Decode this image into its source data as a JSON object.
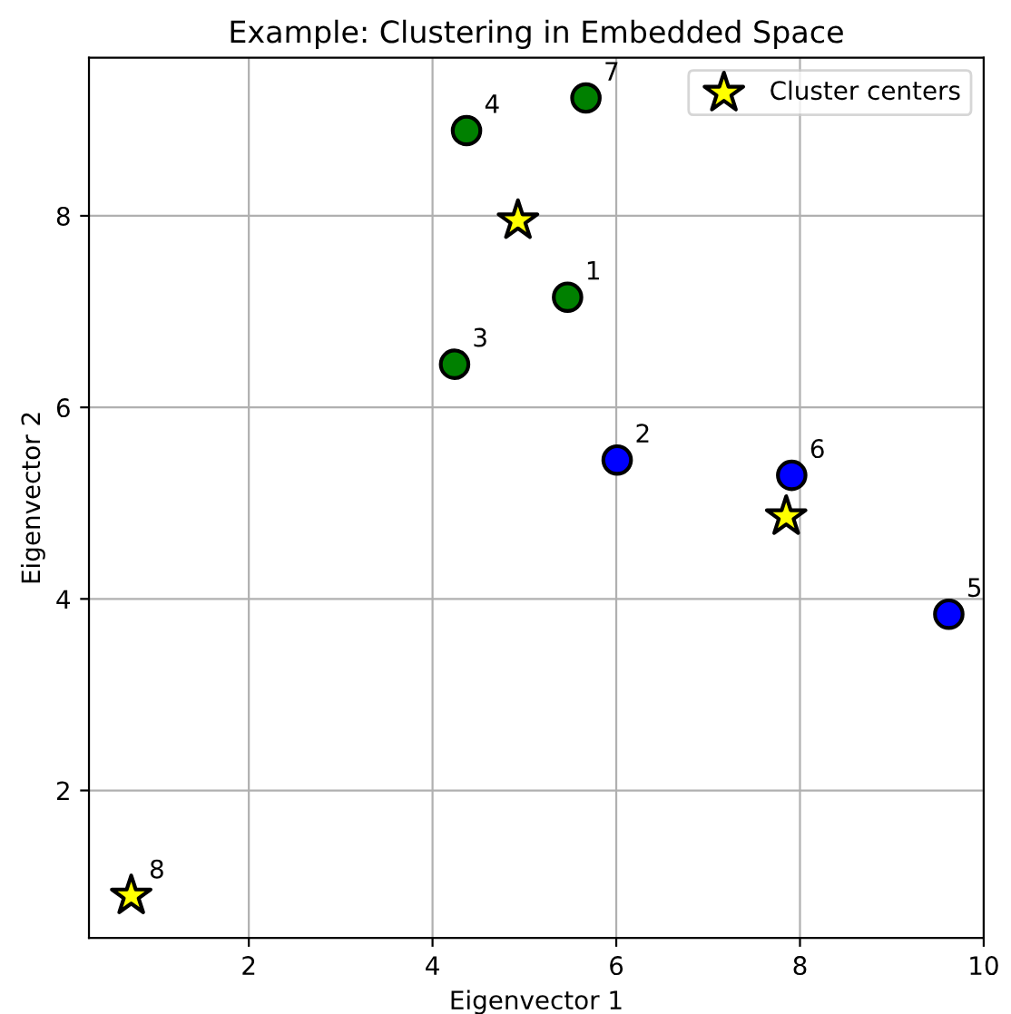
{
  "chart_data": {
    "type": "scatter",
    "title": "Example: Clustering in Embedded Space",
    "xlabel": "Eigenvector 1",
    "ylabel": "Eigenvector 2",
    "xlim": [
      0.26,
      10.0
    ],
    "ylim": [
      0.46,
      9.65
    ],
    "xticks": [
      2,
      4,
      6,
      8,
      10
    ],
    "yticks": [
      2,
      4,
      6,
      8
    ],
    "grid": true,
    "legend": "top right",
    "series": [
      {
        "color": "#008000",
        "marker": "circle",
        "x": [
          5.47,
          4.24,
          4.37,
          5.67
        ],
        "values": [
          7.15,
          6.45,
          8.89,
          9.23
        ]
      },
      {
        "color": "#0000ff",
        "marker": "circle",
        "x": [
          6.01,
          9.62,
          7.91
        ],
        "values": [
          5.45,
          3.84,
          5.29
        ]
      },
      {
        "name": "Cluster centers",
        "color": "#ffff00",
        "marker": "star",
        "x": [
          4.93,
          7.85,
          0.72
        ],
        "values": [
          7.95,
          4.86,
          0.9
        ]
      }
    ],
    "annotations": [
      {
        "text": "1",
        "x": 5.47,
        "y": 7.15
      },
      {
        "text": "2",
        "x": 6.01,
        "y": 5.45
      },
      {
        "text": "3",
        "x": 4.24,
        "y": 6.45
      },
      {
        "text": "4",
        "x": 4.37,
        "y": 8.89
      },
      {
        "text": "5",
        "x": 9.62,
        "y": 3.84
      },
      {
        "text": "6",
        "x": 7.91,
        "y": 5.29
      },
      {
        "text": "7",
        "x": 5.67,
        "y": 9.23
      },
      {
        "text": "8",
        "x": 0.72,
        "y": 0.9
      }
    ]
  }
}
